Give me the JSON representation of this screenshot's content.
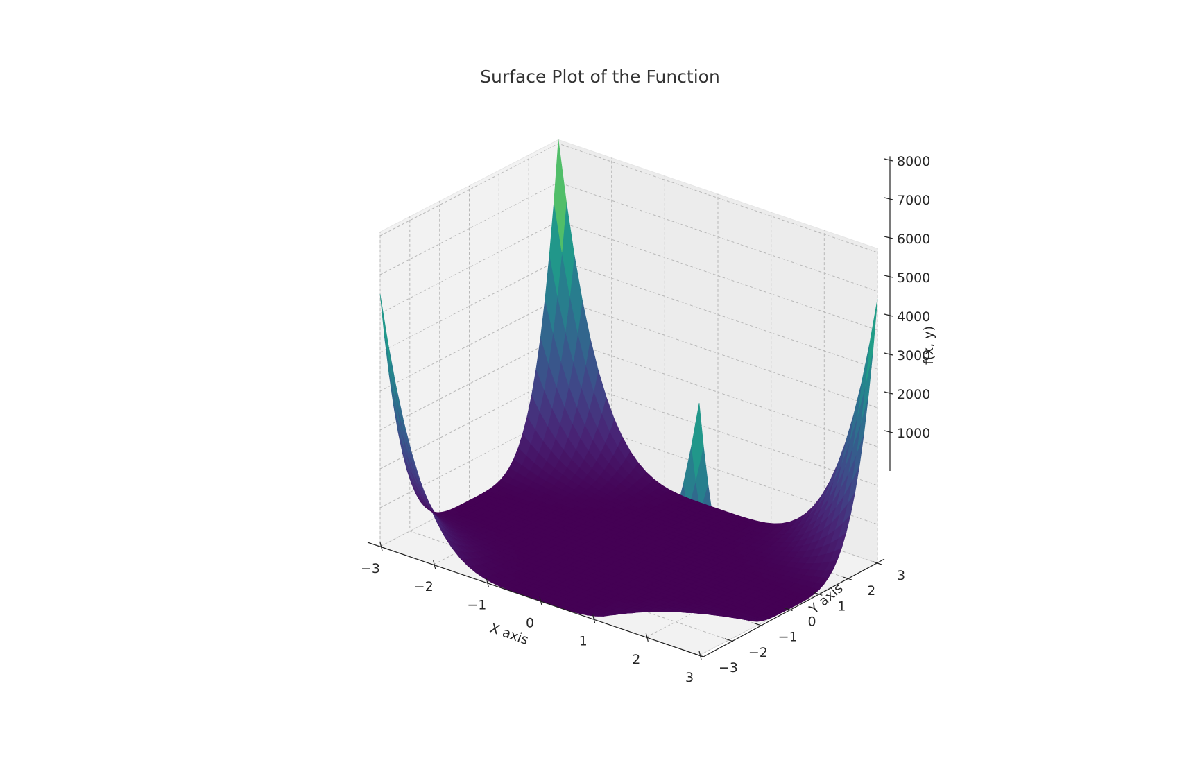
{
  "chart_data": {
    "type": "surface",
    "title": "Surface Plot of the Function",
    "xlabel": "X axis",
    "ylabel": "Y axis",
    "zlabel": "f(x, y)",
    "x_ticks": [
      "−3",
      "−2",
      "−1",
      "0",
      "1",
      "2",
      "3"
    ],
    "y_ticks": [
      "−3",
      "−2",
      "−1",
      "0",
      "1",
      "2",
      "3"
    ],
    "z_ticks": [
      "1000",
      "2000",
      "3000",
      "4000",
      "5000",
      "6000",
      "7000",
      "8000"
    ],
    "x_range": [
      -3,
      3
    ],
    "y_range": [
      -3,
      3
    ],
    "z_range": [
      0,
      8100
    ],
    "colormap": "viridis",
    "grid": true,
    "corner_values": [
      {
        "x": -3,
        "y": -3,
        "z": 6500
      },
      {
        "x": 3,
        "y": -3,
        "z": 6500
      },
      {
        "x": -3,
        "y": 3,
        "z": 8100
      },
      {
        "x": 3,
        "y": 3,
        "z": 6800
      }
    ],
    "minimum": {
      "x": 0,
      "y": 0,
      "z": 0
    }
  }
}
